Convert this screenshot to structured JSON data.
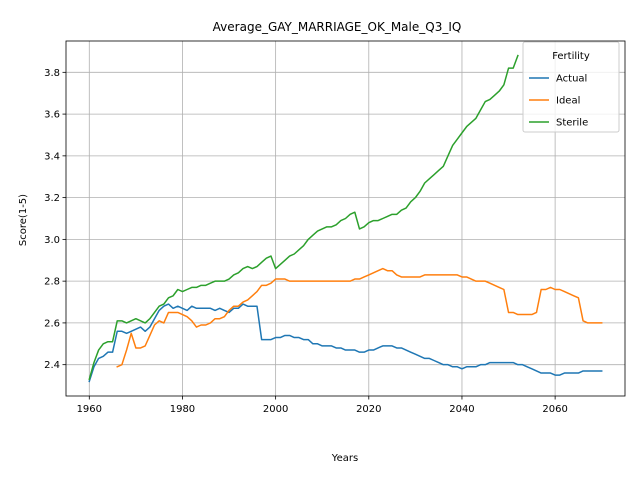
{
  "chart_data": {
    "type": "line",
    "title": "Average_GAY_MARRIAGE_OK_Male_Q3_IQ",
    "xlabel": "Years",
    "ylabel": "Score(1-5)",
    "xlim": [
      1955,
      2075
    ],
    "ylim": [
      2.25,
      3.95
    ],
    "xticks": [
      1960,
      1980,
      2000,
      2020,
      2040,
      2060
    ],
    "yticks": [
      2.4,
      2.6,
      2.8,
      3.0,
      3.2,
      3.4,
      3.6,
      3.8
    ],
    "grid": true,
    "legend": {
      "title": "Fertility",
      "placement": "top-right"
    },
    "colors": {
      "Actual": "#1f77b4",
      "Ideal": "#ff7f0e",
      "Sterile": "#2ca02c"
    },
    "series": [
      {
        "name": "Actual",
        "x": [
          1960,
          1961,
          1962,
          1963,
          1964,
          1965,
          1966,
          1967,
          1968,
          1969,
          1970,
          1971,
          1972,
          1973,
          1974,
          1975,
          1976,
          1977,
          1978,
          1979,
          1980,
          1981,
          1982,
          1983,
          1984,
          1985,
          1986,
          1987,
          1988,
          1989,
          1990,
          1991,
          1992,
          1993,
          1994,
          1995,
          1996,
          1997,
          1998,
          1999,
          2000,
          2001,
          2002,
          2003,
          2004,
          2005,
          2006,
          2007,
          2008,
          2009,
          2010,
          2011,
          2012,
          2013,
          2014,
          2015,
          2016,
          2017,
          2018,
          2019,
          2020,
          2021,
          2022,
          2023,
          2024,
          2025,
          2026,
          2027,
          2028,
          2029,
          2030,
          2031,
          2032,
          2033,
          2034,
          2035,
          2036,
          2037,
          2038,
          2039,
          2040,
          2041,
          2042,
          2043,
          2044,
          2045,
          2046,
          2047,
          2048,
          2049,
          2050,
          2051,
          2052,
          2053,
          2054,
          2055,
          2056,
          2057,
          2058,
          2059,
          2060,
          2061,
          2062,
          2063,
          2064,
          2065,
          2066,
          2067,
          2068,
          2069,
          2070
        ],
        "y": [
          2.32,
          2.39,
          2.43,
          2.44,
          2.46,
          2.46,
          2.56,
          2.56,
          2.55,
          2.56,
          2.57,
          2.58,
          2.56,
          2.58,
          2.62,
          2.66,
          2.68,
          2.69,
          2.67,
          2.68,
          2.67,
          2.66,
          2.68,
          2.67,
          2.67,
          2.67,
          2.67,
          2.66,
          2.67,
          2.66,
          2.65,
          2.67,
          2.67,
          2.69,
          2.68,
          2.68,
          2.68,
          2.52,
          2.52,
          2.52,
          2.53,
          2.53,
          2.54,
          2.54,
          2.53,
          2.53,
          2.52,
          2.52,
          2.5,
          2.5,
          2.49,
          2.49,
          2.49,
          2.48,
          2.48,
          2.47,
          2.47,
          2.47,
          2.46,
          2.46,
          2.47,
          2.47,
          2.48,
          2.49,
          2.49,
          2.49,
          2.48,
          2.48,
          2.47,
          2.46,
          2.45,
          2.44,
          2.43,
          2.43,
          2.42,
          2.41,
          2.4,
          2.4,
          2.39,
          2.39,
          2.38,
          2.39,
          2.39,
          2.39,
          2.4,
          2.4,
          2.41,
          2.41,
          2.41,
          2.41,
          2.41,
          2.41,
          2.4,
          2.4,
          2.39,
          2.38,
          2.37,
          2.36,
          2.36,
          2.36,
          2.35,
          2.35,
          2.36,
          2.36,
          2.36,
          2.36,
          2.37,
          2.37,
          2.37,
          2.37,
          2.37
        ]
      },
      {
        "name": "Ideal",
        "x": [
          1966,
          1967,
          1968,
          1969,
          1970,
          1971,
          1972,
          1973,
          1974,
          1975,
          1976,
          1977,
          1978,
          1979,
          1980,
          1981,
          1982,
          1983,
          1984,
          1985,
          1986,
          1987,
          1988,
          1989,
          1990,
          1991,
          1992,
          1993,
          1994,
          1995,
          1996,
          1997,
          1998,
          1999,
          2000,
          2001,
          2002,
          2003,
          2004,
          2005,
          2006,
          2007,
          2008,
          2009,
          2010,
          2011,
          2012,
          2013,
          2014,
          2015,
          2016,
          2017,
          2018,
          2019,
          2020,
          2021,
          2022,
          2023,
          2024,
          2025,
          2026,
          2027,
          2028,
          2029,
          2030,
          2031,
          2032,
          2033,
          2034,
          2035,
          2036,
          2037,
          2038,
          2039,
          2040,
          2041,
          2042,
          2043,
          2044,
          2045,
          2046,
          2047,
          2048,
          2049,
          2050,
          2051,
          2052,
          2053,
          2054,
          2055,
          2056,
          2057,
          2058,
          2059,
          2060,
          2061,
          2062,
          2063,
          2064,
          2065,
          2066,
          2067,
          2068,
          2069,
          2070
        ],
        "y": [
          2.39,
          2.4,
          2.47,
          2.55,
          2.48,
          2.48,
          2.49,
          2.54,
          2.59,
          2.61,
          2.6,
          2.65,
          2.65,
          2.65,
          2.64,
          2.63,
          2.61,
          2.58,
          2.59,
          2.59,
          2.6,
          2.62,
          2.62,
          2.63,
          2.66,
          2.68,
          2.68,
          2.7,
          2.71,
          2.73,
          2.75,
          2.78,
          2.78,
          2.79,
          2.81,
          2.81,
          2.81,
          2.8,
          2.8,
          2.8,
          2.8,
          2.8,
          2.8,
          2.8,
          2.8,
          2.8,
          2.8,
          2.8,
          2.8,
          2.8,
          2.8,
          2.81,
          2.81,
          2.82,
          2.83,
          2.84,
          2.85,
          2.86,
          2.85,
          2.85,
          2.83,
          2.82,
          2.82,
          2.82,
          2.82,
          2.82,
          2.83,
          2.83,
          2.83,
          2.83,
          2.83,
          2.83,
          2.83,
          2.83,
          2.82,
          2.82,
          2.81,
          2.8,
          2.8,
          2.8,
          2.79,
          2.78,
          2.77,
          2.76,
          2.65,
          2.65,
          2.64,
          2.64,
          2.64,
          2.64,
          2.65,
          2.76,
          2.76,
          2.77,
          2.76,
          2.76,
          2.75,
          2.74,
          2.73,
          2.72,
          2.61,
          2.6,
          2.6,
          2.6,
          2.6
        ]
      },
      {
        "name": "Sterile",
        "x": [
          1960,
          1961,
          1962,
          1963,
          1964,
          1965,
          1966,
          1967,
          1968,
          1969,
          1970,
          1971,
          1972,
          1973,
          1974,
          1975,
          1976,
          1977,
          1978,
          1979,
          1980,
          1981,
          1982,
          1983,
          1984,
          1985,
          1986,
          1987,
          1988,
          1989,
          1990,
          1991,
          1992,
          1993,
          1994,
          1995,
          1996,
          1997,
          1998,
          1999,
          2000,
          2001,
          2002,
          2003,
          2004,
          2005,
          2006,
          2007,
          2008,
          2009,
          2010,
          2011,
          2012,
          2013,
          2014,
          2015,
          2016,
          2017,
          2018,
          2019,
          2020,
          2021,
          2022,
          2023,
          2024,
          2025,
          2026,
          2027,
          2028,
          2029,
          2030,
          2031,
          2032,
          2033,
          2034,
          2035,
          2036,
          2037,
          2038,
          2039,
          2040,
          2041,
          2042,
          2043,
          2044,
          2045,
          2046,
          2047,
          2048,
          2049,
          2050,
          2051,
          2052
        ],
        "y": [
          2.33,
          2.41,
          2.47,
          2.5,
          2.51,
          2.51,
          2.61,
          2.61,
          2.6,
          2.61,
          2.62,
          2.61,
          2.6,
          2.62,
          2.65,
          2.68,
          2.69,
          2.72,
          2.73,
          2.76,
          2.75,
          2.76,
          2.77,
          2.77,
          2.78,
          2.78,
          2.79,
          2.8,
          2.8,
          2.8,
          2.81,
          2.83,
          2.84,
          2.86,
          2.87,
          2.86,
          2.87,
          2.89,
          2.91,
          2.92,
          2.86,
          2.88,
          2.9,
          2.92,
          2.93,
          2.95,
          2.97,
          3.0,
          3.02,
          3.04,
          3.05,
          3.06,
          3.06,
          3.07,
          3.09,
          3.1,
          3.12,
          3.13,
          3.05,
          3.06,
          3.08,
          3.09,
          3.09,
          3.1,
          3.11,
          3.12,
          3.12,
          3.14,
          3.15,
          3.18,
          3.2,
          3.23,
          3.27,
          3.29,
          3.31,
          3.33,
          3.35,
          3.4,
          3.45,
          3.48,
          3.51,
          3.54,
          3.56,
          3.58,
          3.62,
          3.66,
          3.67,
          3.69,
          3.71,
          3.74,
          3.82,
          3.82,
          3.88
        ]
      }
    ]
  }
}
